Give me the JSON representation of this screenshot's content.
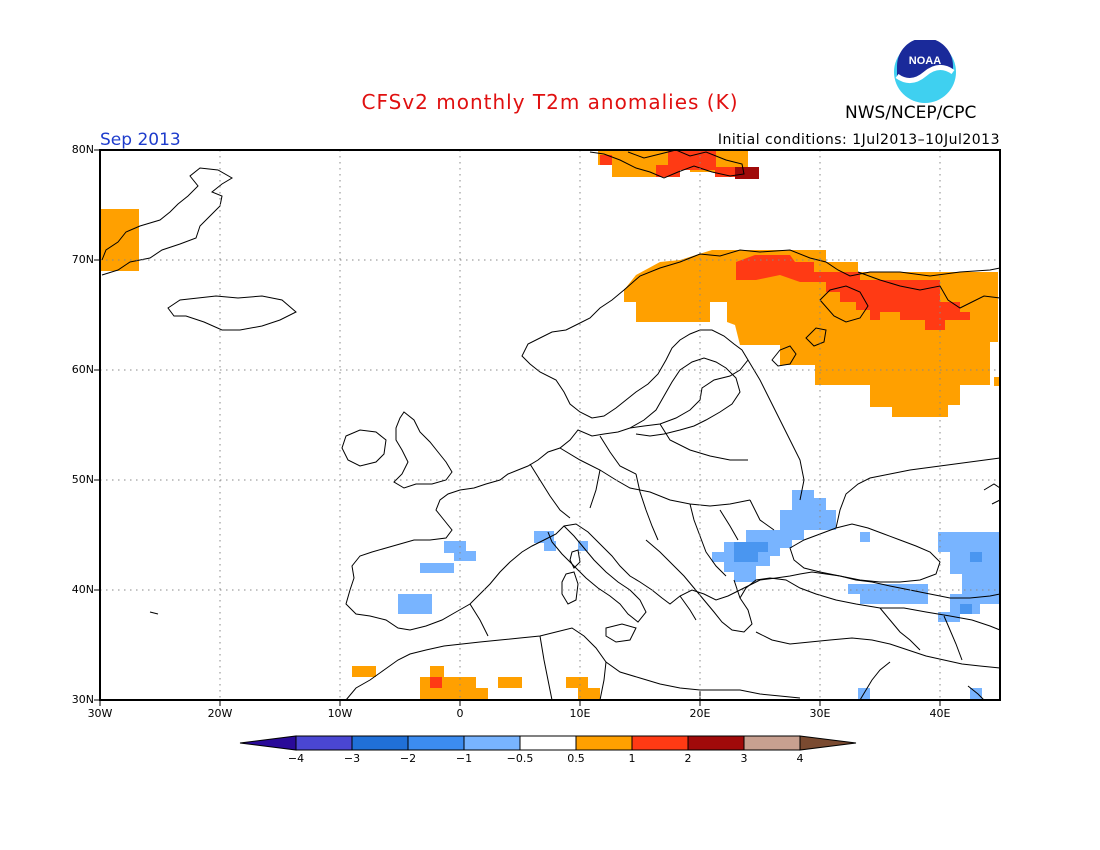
{
  "header": {
    "title": "CFSv2 monthly T2m anomalies (K)",
    "month": "Sep 2013",
    "initial_conditions": "Initial conditions: 1Jul2013–10Jul2013",
    "agency": "NWS/NCEP/CPC",
    "logo_text": "NOAA"
  },
  "colors": {
    "title": "#e01010",
    "month": "#1e3ccc",
    "warm1": "#ffa000",
    "warm2": "#ff3a14",
    "warm3": "#a00a0a",
    "cool1": "#78b4ff",
    "cool2": "#4a96f0"
  },
  "map": {
    "lat_labels": [
      "80N",
      "70N",
      "60N",
      "50N",
      "40N",
      "30N"
    ],
    "lon_labels": [
      "30W",
      "20W",
      "10W",
      "0",
      "10E",
      "20E",
      "30E",
      "40E"
    ],
    "anomaly_regions": [
      {
        "name": "scandinavia-russia-warm",
        "category": "0.5 to 1"
      },
      {
        "name": "northwest-russia-hot",
        "category": "1 to 2"
      },
      {
        "name": "svalbard-warm",
        "category": "0.5 to 1"
      },
      {
        "name": "svalbard-hot",
        "category": "2 to 3"
      },
      {
        "name": "greenland-warm",
        "category": "0.5 to 1"
      },
      {
        "name": "north-africa-warm",
        "category": "0.5 to 1"
      },
      {
        "name": "balkans-black-sea-cool",
        "category": "-1 to -0.5"
      },
      {
        "name": "iberia-cool",
        "category": "-1 to -0.5"
      },
      {
        "name": "caucasus-turkey-cool",
        "category": "-1 to -0.5"
      }
    ]
  },
  "colorbar": {
    "labels": [
      "−4",
      "−3",
      "−2",
      "−1",
      "−0.5",
      "0.5",
      "1",
      "2",
      "3",
      "4"
    ],
    "colors": [
      "#2a0a99",
      "#4a46d2",
      "#2070d8",
      "#3c8cf0",
      "#78b4ff",
      "#ffffff",
      "#ffa000",
      "#ff3a14",
      "#a00a0a",
      "#c8a090",
      "#7a4a30"
    ]
  }
}
